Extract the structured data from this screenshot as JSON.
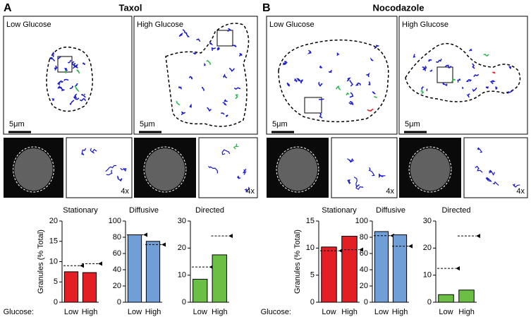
{
  "panels": [
    {
      "letter": "A",
      "title": "Taxol",
      "glucose_label": "Glucose:",
      "images": [
        {
          "label": "Low Glucose",
          "scale": "5μm",
          "zoom": "4x"
        },
        {
          "label": "High Glucose",
          "scale": "5μm",
          "zoom": "4x"
        }
      ]
    },
    {
      "letter": "B",
      "title": "Nocodazole",
      "glucose_label": "Glucose:",
      "images": [
        {
          "label": "Low Glucose",
          "scale": "5μm",
          "zoom": "4x"
        },
        {
          "label": "High Glucose",
          "scale": "5μm",
          "zoom": "4x"
        }
      ]
    }
  ],
  "chart_data": [
    {
      "type": "bar",
      "title": "Stationary",
      "title_color": "#e02020",
      "ylabel": "Granules (% Total)",
      "categories": [
        "Low",
        "High"
      ],
      "values": [
        7.5,
        7.3
      ],
      "reference": [
        9,
        9.5
      ],
      "color": "#e31e24",
      "ylim": [
        0,
        20
      ],
      "yticks": [
        0,
        5,
        10,
        15,
        20
      ]
    },
    {
      "type": "bar",
      "title": "Diffusive",
      "title_color": "#3a3aa0",
      "categories": [
        "Low",
        "High"
      ],
      "values": [
        83,
        75
      ],
      "reference": [
        83,
        71
      ],
      "color": "#6f9fd6",
      "ylim": [
        0,
        100
      ],
      "yticks": [
        0,
        20,
        40,
        60,
        80,
        100
      ]
    },
    {
      "type": "bar",
      "title": "Directed",
      "title_color": "#1a9a3a",
      "categories": [
        "Low",
        "High"
      ],
      "values": [
        8.5,
        17.5
      ],
      "reference": [
        13,
        24.5
      ],
      "color": "#6cbf45",
      "ylim": [
        0,
        30
      ],
      "yticks": [
        0,
        10,
        20,
        30
      ]
    },
    {
      "type": "bar",
      "title": "Stationary",
      "title_color": "#e02020",
      "ylabel": "Granules (% Total)",
      "categories": [
        "Low",
        "High"
      ],
      "values": [
        10.2,
        12.2
      ],
      "reference": [
        9.5,
        9.7
      ],
      "color": "#e31e24",
      "ylim": [
        0,
        15
      ],
      "yticks": [
        0,
        5,
        10,
        15
      ]
    },
    {
      "type": "bar",
      "title": "Diffusive",
      "title_color": "#3a3aa0",
      "categories": [
        "Low",
        "High"
      ],
      "values": [
        87,
        83
      ],
      "reference": [
        82,
        69
      ],
      "color": "#6f9fd6",
      "ylim": [
        0,
        100
      ],
      "yticks": [
        0,
        20,
        40,
        60,
        80,
        100
      ]
    },
    {
      "type": "bar",
      "title": "Directed",
      "title_color": "#1a9a3a",
      "categories": [
        "Low",
        "High"
      ],
      "values": [
        2.8,
        4.5
      ],
      "reference": [
        12.5,
        24.5
      ],
      "color": "#6cbf45",
      "ylim": [
        0,
        30
      ],
      "yticks": [
        0,
        10,
        20,
        30
      ]
    }
  ]
}
